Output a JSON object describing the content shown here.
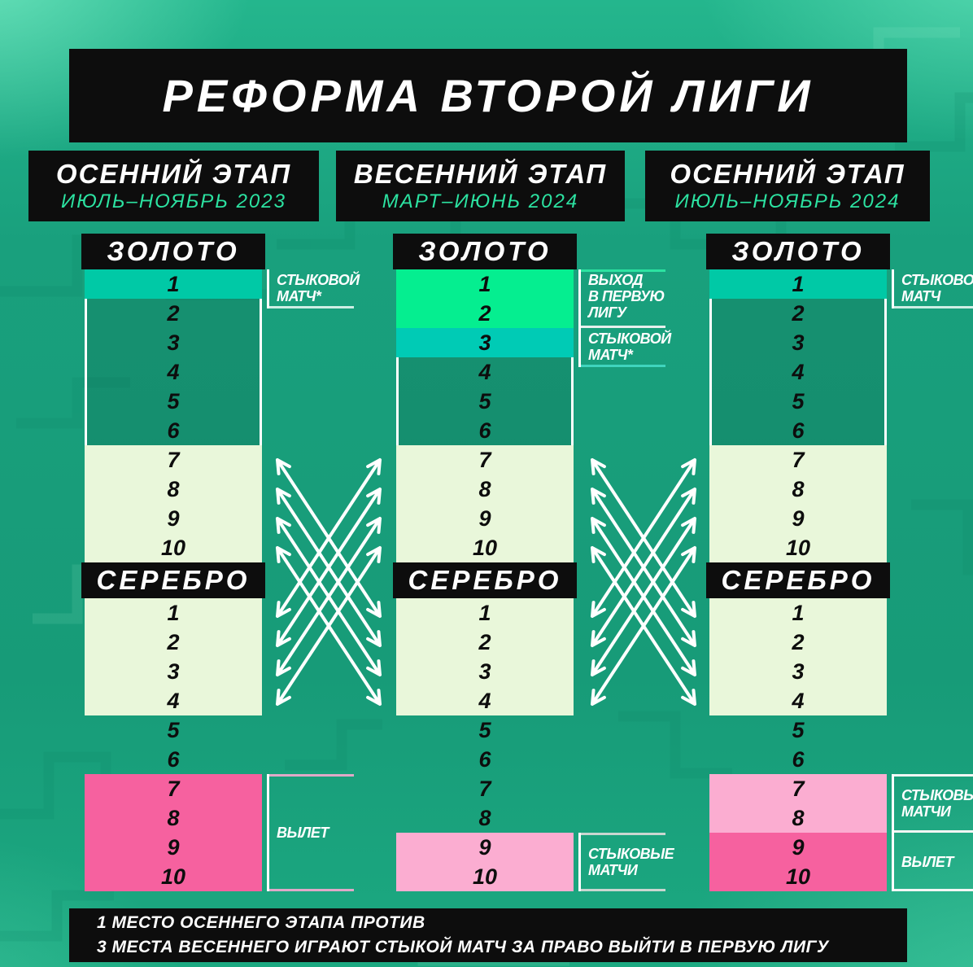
{
  "title": "РЕФОРМА ВТОРОЙ ЛИГИ",
  "footnote": {
    "line1": "1 МЕСТО ОСЕННЕГО ЭТАПА ПРОТИВ",
    "line2": "3 МЕСТА ВЕСЕННЕГО ИГРАЮТ СТЫКОЙ МАТЧ ЗА ПРАВО ВЫЙТИ В ПЕРВУЮ ЛИГУ"
  },
  "colors": {
    "background": "#189d7b",
    "panel_black": "#0d0d0d",
    "accent_green": "#2ce2a1",
    "row_teal": "#00c9a6",
    "row_green": "#05ee90",
    "row_cyan": "#00cbb5",
    "row_cream": "#e9f7da",
    "row_pink": "#f6619f",
    "row_pink_light": "#fbadd1",
    "arrow_white": "#ffffff",
    "number_black": "#0d0d0d"
  },
  "stages": [
    {
      "name": "ОСЕННИЙ ЭТАП",
      "dates": "ИЮЛЬ–НОЯБРЬ 2023",
      "groups": [
        {
          "label": "ЗОЛОТО",
          "rows": [
            {
              "n": "1",
              "style": "teal"
            },
            {
              "n": "2",
              "style": "dim"
            },
            {
              "n": "3",
              "style": "dim"
            },
            {
              "n": "4",
              "style": "dim"
            },
            {
              "n": "5",
              "style": "dim"
            },
            {
              "n": "6",
              "style": "dim"
            },
            {
              "n": "7",
              "style": "cream"
            },
            {
              "n": "8",
              "style": "cream"
            },
            {
              "n": "9",
              "style": "cream"
            },
            {
              "n": "10",
              "style": "cream"
            }
          ]
        },
        {
          "label": "СЕРЕБРО",
          "rows": [
            {
              "n": "1",
              "style": "cream"
            },
            {
              "n": "2",
              "style": "cream"
            },
            {
              "n": "3",
              "style": "cream"
            },
            {
              "n": "4",
              "style": "cream"
            },
            {
              "n": "5",
              "style": "plain"
            },
            {
              "n": "6",
              "style": "plain"
            },
            {
              "n": "7",
              "style": "pink"
            },
            {
              "n": "8",
              "style": "pink"
            },
            {
              "n": "9",
              "style": "pink"
            },
            {
              "n": "10",
              "style": "pink"
            }
          ]
        }
      ],
      "annotations": [
        {
          "id": "playoff-match",
          "lines": [
            "СТЫКОВОЙ",
            "МАТЧ*"
          ],
          "group": 0,
          "row_start": 1,
          "row_end": 1,
          "align": "top",
          "line_bottom": "#cdeee4"
        },
        {
          "id": "relegation",
          "lines": [
            "ВЫЛЕТ"
          ],
          "group": 1,
          "row_start": 7,
          "row_end": 10,
          "align": "center",
          "line_top": "#dfa9c8",
          "line_bottom": "#dfa9c8"
        }
      ]
    },
    {
      "name": "ВЕСЕННИЙ ЭТАП",
      "dates": "МАРТ–ИЮНЬ 2024",
      "groups": [
        {
          "label": "ЗОЛОТО",
          "rows": [
            {
              "n": "1",
              "style": "green"
            },
            {
              "n": "2",
              "style": "green"
            },
            {
              "n": "3",
              "style": "cyan"
            },
            {
              "n": "4",
              "style": "dim"
            },
            {
              "n": "5",
              "style": "dim"
            },
            {
              "n": "6",
              "style": "dim"
            },
            {
              "n": "7",
              "style": "cream"
            },
            {
              "n": "8",
              "style": "cream"
            },
            {
              "n": "9",
              "style": "cream"
            },
            {
              "n": "10",
              "style": "cream"
            }
          ]
        },
        {
          "label": "СЕРЕБРО",
          "rows": [
            {
              "n": "1",
              "style": "cream"
            },
            {
              "n": "2",
              "style": "cream"
            },
            {
              "n": "3",
              "style": "cream"
            },
            {
              "n": "4",
              "style": "cream"
            },
            {
              "n": "5",
              "style": "plain"
            },
            {
              "n": "6",
              "style": "plain"
            },
            {
              "n": "7",
              "style": "plain"
            },
            {
              "n": "8",
              "style": "plain"
            },
            {
              "n": "9",
              "style": "pinklight"
            },
            {
              "n": "10",
              "style": "pinklight"
            }
          ]
        }
      ],
      "annotations": [
        {
          "id": "promotion-first-league",
          "lines": [
            "ВЫХОД",
            "В ПЕРВУЮ",
            "ЛИГУ"
          ],
          "group": 0,
          "row_start": 1,
          "row_end": 2,
          "align": "top",
          "line_top": "#2ce2a1",
          "line_bottom": "#e6efec"
        },
        {
          "id": "playoff-match",
          "lines": [
            "СТЫКОВОЙ",
            "МАТЧ*"
          ],
          "group": 0,
          "row_start": 3,
          "row_end": 3,
          "align": "top",
          "line_bottom": "#3fd4bd"
        },
        {
          "id": "playoff-matches",
          "lines": [
            "СТЫКОВЫЕ",
            "МАТЧИ"
          ],
          "group": 1,
          "row_start": 9,
          "row_end": 10,
          "align": "center",
          "line_top": "#c9d6d0",
          "line_bottom": "#c9d6d0"
        }
      ]
    },
    {
      "name": "ОСЕННИЙ ЭТАП",
      "dates": "ИЮЛЬ–НОЯБРЬ 2024",
      "groups": [
        {
          "label": "ЗОЛОТО",
          "rows": [
            {
              "n": "1",
              "style": "teal"
            },
            {
              "n": "2",
              "style": "dim"
            },
            {
              "n": "3",
              "style": "dim"
            },
            {
              "n": "4",
              "style": "dim"
            },
            {
              "n": "5",
              "style": "dim"
            },
            {
              "n": "6",
              "style": "dim"
            },
            {
              "n": "7",
              "style": "cream"
            },
            {
              "n": "8",
              "style": "cream"
            },
            {
              "n": "9",
              "style": "cream"
            },
            {
              "n": "10",
              "style": "cream"
            }
          ]
        },
        {
          "label": "СЕРЕБРО",
          "rows": [
            {
              "n": "1",
              "style": "cream"
            },
            {
              "n": "2",
              "style": "cream"
            },
            {
              "n": "3",
              "style": "cream"
            },
            {
              "n": "4",
              "style": "cream"
            },
            {
              "n": "5",
              "style": "plain"
            },
            {
              "n": "6",
              "style": "plain"
            },
            {
              "n": "7",
              "style": "pinklight"
            },
            {
              "n": "8",
              "style": "pinklight"
            },
            {
              "n": "9",
              "style": "pink"
            },
            {
              "n": "10",
              "style": "pink"
            }
          ]
        }
      ],
      "annotations": [
        {
          "id": "playoff-match",
          "lines": [
            "СТЫКОВОЙ",
            "МАТЧ"
          ],
          "group": 0,
          "row_start": 1,
          "row_end": 1,
          "align": "top",
          "line_bottom": "#cdeee4"
        },
        {
          "id": "playoff-matches",
          "lines": [
            "СТЫКОВЫЕ",
            "МАТЧИ"
          ],
          "group": 1,
          "row_start": 7,
          "row_end": 8,
          "align": "center",
          "line_top": "#f2f6f4",
          "line_bottom": "#f2f6f4"
        },
        {
          "id": "relegation",
          "lines": [
            "ВЫЛЕТ"
          ],
          "group": 1,
          "row_start": 9,
          "row_end": 10,
          "align": "center",
          "line_bottom": "#f2f6f4"
        }
      ]
    }
  ]
}
